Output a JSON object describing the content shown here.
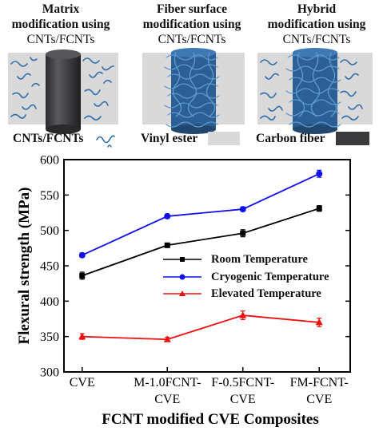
{
  "schematic": {
    "panels": [
      {
        "title": "Matrix",
        "line2": "modification using",
        "line3": "CNTs/FCNTs"
      },
      {
        "title": "Fiber surface",
        "line2": "modification using",
        "line3": "CNTs/FCNTs"
      },
      {
        "title": "Hybrid",
        "line2": "modification using",
        "line3": "CNTs/FCNTs"
      }
    ],
    "legend": [
      {
        "label": "CNTs/FCNTs",
        "swatch": "wavy-tube-icon"
      },
      {
        "label": "Vinyl ester",
        "swatch": "light-gray-box",
        "color": "#d9d9d9"
      },
      {
        "label": "Carbon fiber",
        "swatch": "dark-gray-box",
        "color": "#3a3a3d"
      }
    ],
    "colors": {
      "matrix": "#d9d9d9",
      "fiber": "#3b3b3f",
      "cnt": "#2f6ea8"
    }
  },
  "chart_data": {
    "type": "line",
    "xlabel": "FCNT modified CVE Composites",
    "ylabel": "Flexural strength (MPa)",
    "ylim": [
      300,
      600
    ],
    "yticks": [
      300,
      350,
      400,
      450,
      500,
      550,
      600
    ],
    "categories": [
      [
        "CVE"
      ],
      [
        "M-1.0FCNT-",
        "CVE"
      ],
      [
        "F-0.5FCNT-",
        "CVE"
      ],
      [
        "FM-FCNT-",
        "CVE"
      ]
    ],
    "legend_position": "center-right",
    "grid": false,
    "series": [
      {
        "name": "Room Temperature",
        "color": "#000000",
        "marker": "square",
        "values": [
          436,
          479,
          496,
          531
        ],
        "errors": [
          5,
          3,
          5,
          4
        ]
      },
      {
        "name": "Cryogenic Temperature",
        "color": "#1010ee",
        "marker": "circle",
        "values": [
          465,
          520,
          530,
          580
        ],
        "errors": [
          3,
          3,
          3,
          5
        ]
      },
      {
        "name": "Elevated Temperature",
        "color": "#ee1010",
        "marker": "triangle",
        "values": [
          350,
          346,
          380,
          370
        ],
        "errors": [
          4,
          3,
          6,
          6
        ]
      }
    ]
  }
}
